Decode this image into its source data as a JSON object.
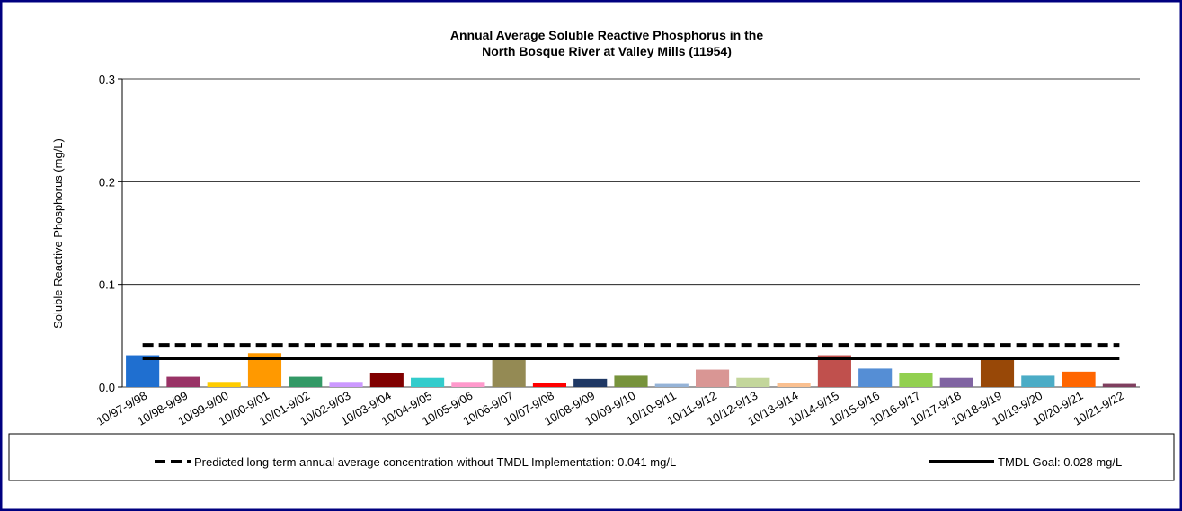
{
  "chart_data": {
    "type": "bar",
    "title": [
      "Annual Average Soluble Reactive Phosphorus in the",
      "North Bosque River at Valley Mills (11954)"
    ],
    "y_label": "Soluble Reactive Phosphorus (mg/L)",
    "categories": [
      "10/97-9/98",
      "10/98-9/99",
      "10/99-9/00",
      "10/00-9/01",
      "10/01-9/02",
      "10/02-9/03",
      "10/03-9/04",
      "10/04-9/05",
      "10/05-9/06",
      "10/06-9/07",
      "10/07-9/08",
      "10/08-9/09",
      "10/09-9/10",
      "10/10-9/11",
      "10/11-9/12",
      "10/12-9/13",
      "10/13-9/14",
      "10/14-9/15",
      "10/15-9/16",
      "10/16-9/17",
      "10/17-9/18",
      "10/18-9/19",
      "10/19-9/20",
      "10/20-9/21",
      "10/21-9/22"
    ],
    "values": [
      0.031,
      0.01,
      0.005,
      0.033,
      0.01,
      0.005,
      0.014,
      0.009,
      0.005,
      0.028,
      0.004,
      0.008,
      0.011,
      0.003,
      0.017,
      0.009,
      0.004,
      0.031,
      0.018,
      0.014,
      0.009,
      0.028,
      0.011,
      0.015,
      0.003
    ],
    "colors": [
      "#1f6fd0",
      "#993366",
      "#ffcc00",
      "#ff9900",
      "#339966",
      "#cc99ff",
      "#800000",
      "#33cccc",
      "#ff99cc",
      "#948a54",
      "#ff0000",
      "#1f3864",
      "#77933c",
      "#95b3d7",
      "#d99694",
      "#c3d69b",
      "#fac090",
      "#c0504d",
      "#558ed5",
      "#92d050",
      "#8064a2",
      "#984807",
      "#4bacc6",
      "#ff6600",
      "#7f3f5f"
    ],
    "reference_lines": [
      {
        "name": "Predicted long-term annual average concentration without TMDL Implementation: 0.041 mg/L",
        "value": 0.041,
        "style": "dashed",
        "color": "#000000"
      },
      {
        "name": "TMDL Goal: 0.028 mg/L",
        "value": 0.028,
        "style": "solid",
        "color": "#000000"
      }
    ],
    "ylim": [
      0,
      0.3
    ],
    "yticks": [
      {
        "value": 0,
        "label": "0.0"
      },
      0.1,
      0.2,
      0.3
    ],
    "grid": true
  }
}
